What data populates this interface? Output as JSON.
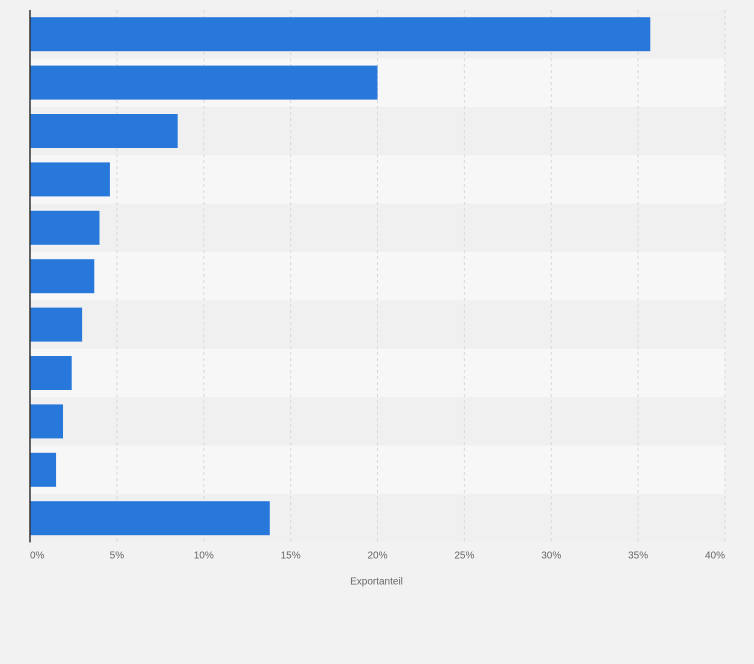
{
  "chart_data": {
    "type": "bar",
    "orientation": "horizontal",
    "categories": [
      "",
      "",
      "",
      "",
      "",
      "",
      "",
      "",
      "",
      "",
      ""
    ],
    "values": [
      35.7,
      20.0,
      8.5,
      4.6,
      4.0,
      3.7,
      3.0,
      2.4,
      1.9,
      1.5,
      13.8
    ],
    "title": "",
    "xlabel": "Exportanteil",
    "ylabel": "",
    "xlim": [
      0,
      40
    ],
    "ticks": [
      0,
      5,
      10,
      15,
      20,
      25,
      30,
      35,
      40
    ],
    "tick_labels": [
      "0%",
      "5%",
      "10%",
      "15%",
      "20%",
      "25%",
      "30%",
      "35%",
      "40%"
    ],
    "grid": "vertical-dashed",
    "legend": "none"
  },
  "colors": {
    "bar": "#2878dc",
    "band_dark": "#f0f0f0",
    "band_light": "#f7f7f7",
    "background": "#f2f2f2",
    "grid": "#d8d8d8",
    "axis": "#333333",
    "tick_text": "#666666"
  }
}
